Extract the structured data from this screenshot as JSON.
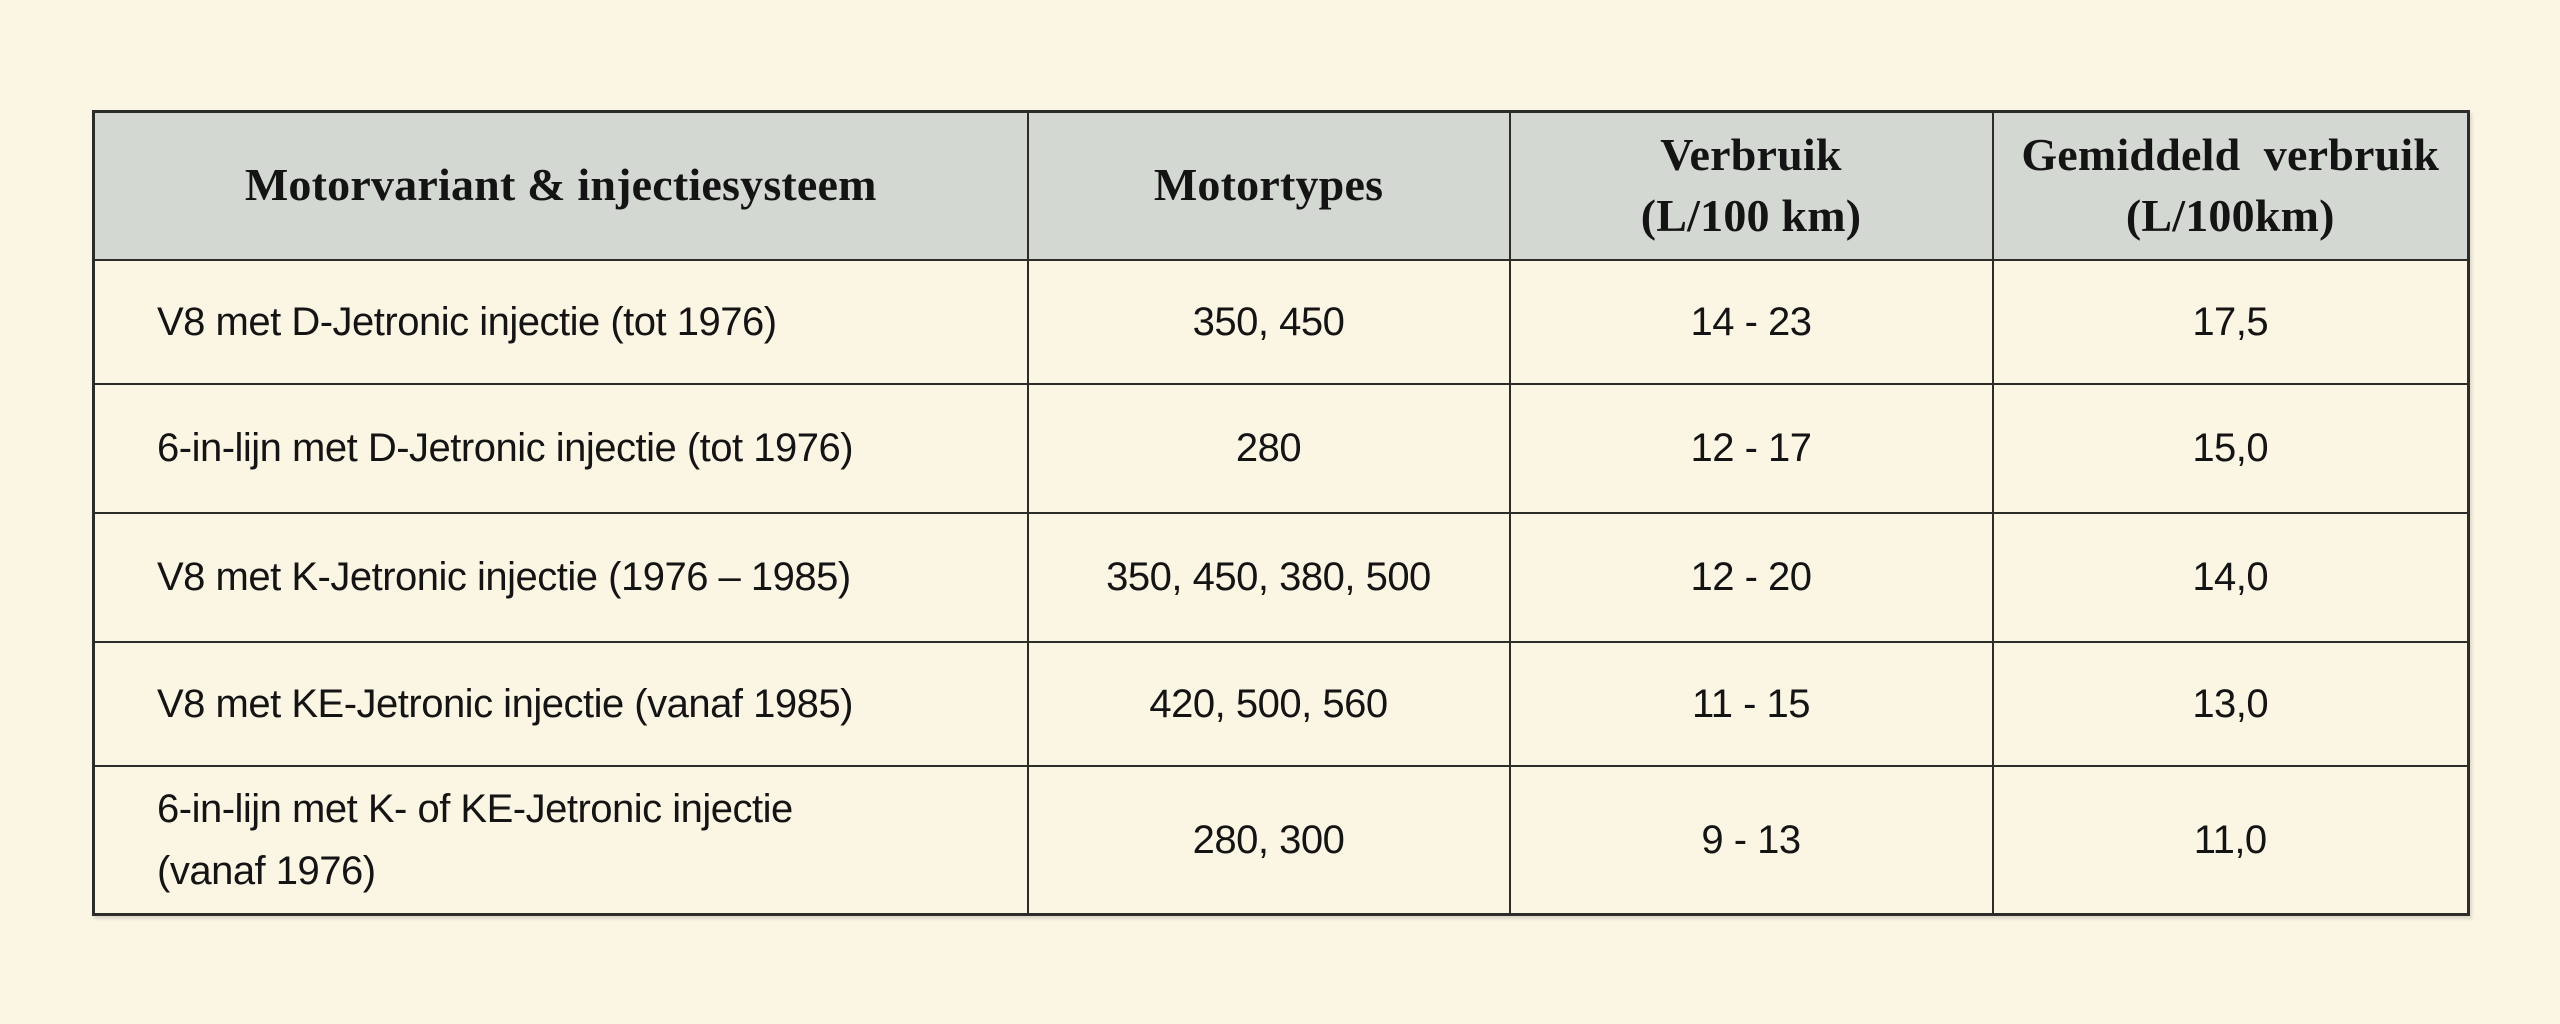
{
  "style": {
    "page_background": "#fbf5e4",
    "header_background": "#d3d8d2",
    "border_color": "#2c2c28",
    "text_color": "#141414"
  },
  "chart_data": {
    "type": "table",
    "columns": [
      "Motorvariant & injectiesysteem",
      "Motortypes",
      "Verbruik\n(L/100 km)",
      "Gemiddeld  verbruik\n(L/100km)"
    ],
    "rows": [
      [
        "V8 met D-Jetronic injectie (tot 1976)",
        "350, 450",
        "14 - 23",
        "17,5"
      ],
      [
        "6-in-lijn met D-Jetronic injectie (tot 1976)",
        "280",
        "12 - 17",
        "15,0"
      ],
      [
        "V8 met K-Jetronic injectie (1976 – 1985)",
        "350, 450, 380, 500",
        "12 - 20",
        "14,0"
      ],
      [
        "V8 met KE-Jetronic injectie (vanaf 1985)",
        "420, 500, 560",
        "11 - 15",
        "13,0"
      ],
      [
        "6-in-lijn met K- of KE-Jetronic injectie\n(vanaf 1976)",
        "280, 300",
        "9 - 13",
        "11,0"
      ]
    ]
  }
}
